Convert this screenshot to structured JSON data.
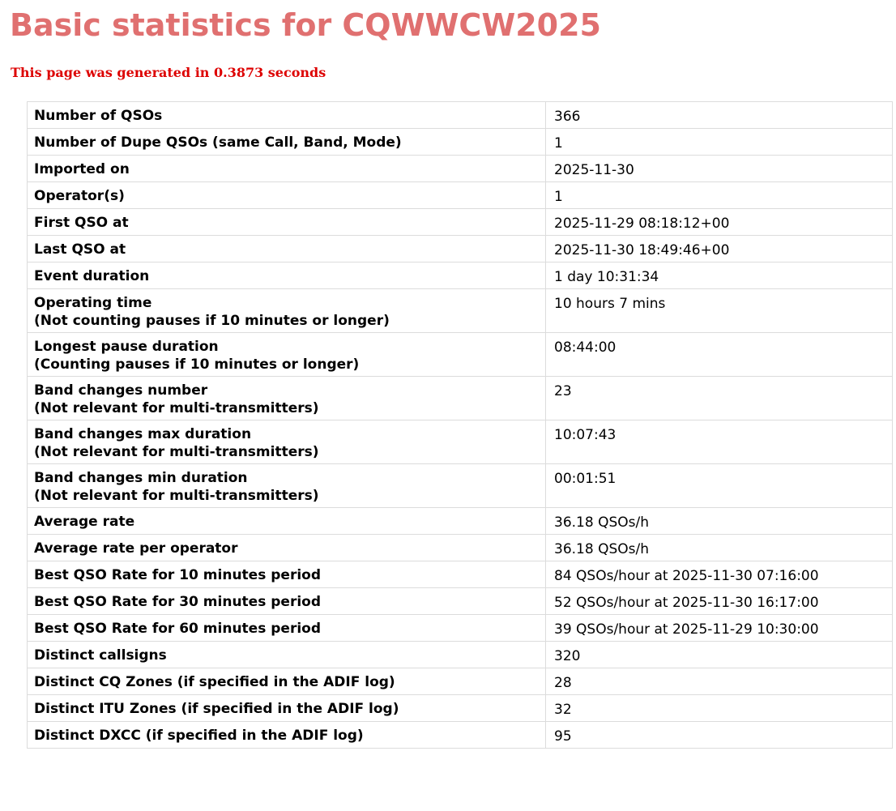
{
  "header": {
    "title": "Basic statistics for CQWWCW2025",
    "generated": "This page was generated in 0.3873 seconds"
  },
  "colors": {
    "title": "#e07070",
    "generated": "#dd0000",
    "grid": "#dcdcdc"
  },
  "stats": [
    {
      "label": "Number of QSOs",
      "sub": "",
      "value": "366"
    },
    {
      "label": "Number of Dupe QSOs (same Call, Band, Mode)",
      "sub": "",
      "value": "1"
    },
    {
      "label": "Imported on",
      "sub": "",
      "value": "2025-11-30"
    },
    {
      "label": "Operator(s)",
      "sub": "",
      "value": "1"
    },
    {
      "label": "First QSO at",
      "sub": "",
      "value": "2025-11-29 08:18:12+00"
    },
    {
      "label": "Last QSO at",
      "sub": "",
      "value": "2025-11-30 18:49:46+00"
    },
    {
      "label": "Event duration",
      "sub": "",
      "value": "1 day 10:31:34"
    },
    {
      "label": "Operating time",
      "sub": "(Not counting pauses if 10 minutes or longer)",
      "value": "10 hours 7 mins"
    },
    {
      "label": "Longest pause duration",
      "sub": "(Counting pauses if 10 minutes or longer)",
      "value": "08:44:00"
    },
    {
      "label": "Band changes number",
      "sub": "(Not relevant for multi-transmitters)",
      "value": "23"
    },
    {
      "label": "Band changes max duration",
      "sub": "(Not relevant for multi-transmitters)",
      "value": "10:07:43"
    },
    {
      "label": "Band changes min duration",
      "sub": "(Not relevant for multi-transmitters)",
      "value": "00:01:51"
    },
    {
      "label": "Average rate",
      "sub": "",
      "value": "36.18 QSOs/h"
    },
    {
      "label": "Average rate per operator",
      "sub": "",
      "value": "36.18 QSOs/h"
    },
    {
      "label": "Best QSO Rate for 10 minutes period",
      "sub": "",
      "value": "84 QSOs/hour at 2025-11-30 07:16:00"
    },
    {
      "label": "Best QSO Rate for 30 minutes period",
      "sub": "",
      "value": "52 QSOs/hour at 2025-11-30 16:17:00"
    },
    {
      "label": "Best QSO Rate for 60 minutes period",
      "sub": "",
      "value": "39 QSOs/hour at 2025-11-29 10:30:00"
    },
    {
      "label": "Distinct callsigns",
      "sub": "",
      "value": "320"
    },
    {
      "label": "Distinct CQ Zones (if specified in the ADIF log)",
      "sub": "",
      "value": "28"
    },
    {
      "label": "Distinct ITU Zones (if specified in the ADIF log)",
      "sub": "",
      "value": "32"
    },
    {
      "label": "Distinct DXCC (if specified in the ADIF log)",
      "sub": "",
      "value": "95"
    }
  ]
}
